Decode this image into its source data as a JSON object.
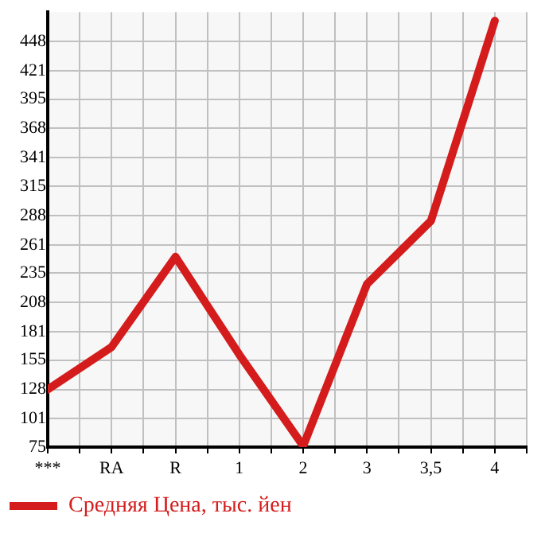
{
  "chart_data": {
    "type": "line",
    "categories": [
      "***",
      "RA",
      "R",
      "1",
      "2",
      "3",
      "3,5",
      "4"
    ],
    "series": [
      {
        "name": "Средняя Цена, тыс. йен",
        "color": "#d41c1c",
        "values": [
          128,
          167,
          250,
          160,
          76,
          225,
          283,
          467
        ]
      }
    ],
    "ylim": [
      75,
      475
    ],
    "yticks": [
      75,
      101,
      128,
      155,
      181,
      208,
      235,
      261,
      288,
      315,
      341,
      368,
      395,
      421,
      448
    ],
    "grid": true,
    "legend": "bottom left",
    "marker": "none",
    "line_style": "solid"
  }
}
